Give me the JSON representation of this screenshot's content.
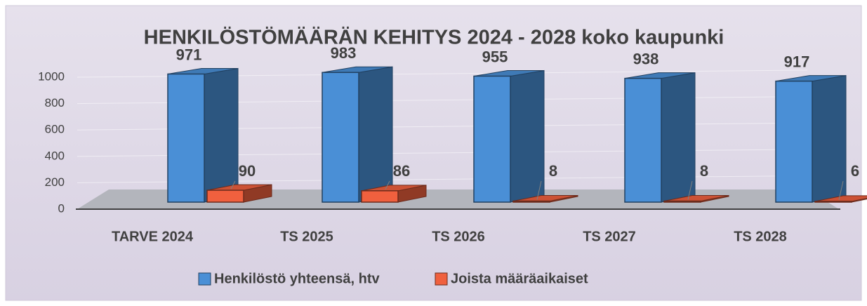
{
  "chart_data": {
    "type": "bar3d",
    "title": "HENKILÖSTÖMÄÄRÄN KEHITYS 2024 - 2028 koko kaupunki",
    "categories": [
      "TARVE 2024",
      "TS 2025",
      "TS 2026",
      "TS 2027",
      "TS 2028"
    ],
    "series": [
      {
        "name": "Henkilöstö yhteensä, htv",
        "color": "#4a8fd6",
        "values": [
          971,
          983,
          955,
          938,
          917
        ]
      },
      {
        "name": "Joista määräaikaiset",
        "color": "#f0603e",
        "values": [
          90,
          86,
          8,
          8,
          6
        ]
      }
    ],
    "ylim": [
      0,
      1000
    ],
    "yticks": [
      0,
      200,
      400,
      600,
      800,
      1000
    ],
    "grid": true,
    "legend": "bottom"
  }
}
